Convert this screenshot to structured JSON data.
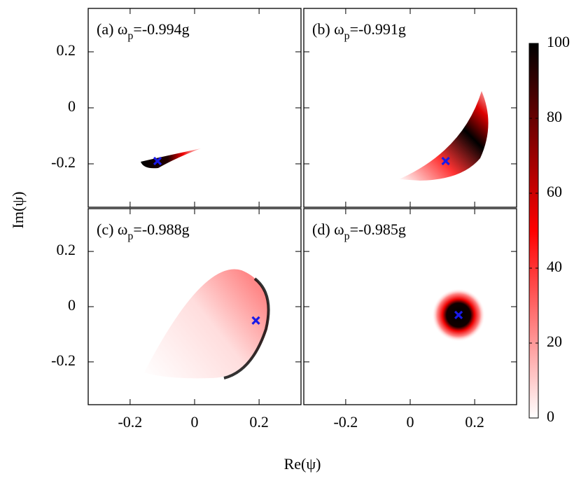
{
  "chart_data": {
    "type": "panels",
    "xlabel": "Re(ψ)",
    "ylabel": "Im(ψ)",
    "panels": [
      {
        "type": "scatter",
        "title": "(a) ω",
        "title_sub": "p",
        "title_rest": "=-0.994g",
        "x": [
          -0.115
        ],
        "y": [
          -0.19
        ],
        "color": "#1a1ae6",
        "xlim": [
          -0.33,
          0.33
        ],
        "ylim": [
          -0.355,
          0.355
        ],
        "xticks": [
          -0.2,
          0,
          0.2
        ],
        "yticks": [
          -0.2,
          0,
          0.2
        ]
      },
      {
        "type": "scatter",
        "title": "(b) ω",
        "title_sub": "p",
        "title_rest": "=-0.991g",
        "x": [
          0.11
        ],
        "y": [
          -0.19
        ],
        "color": "#1a1ae6",
        "xlim": [
          -0.33,
          0.33
        ],
        "ylim": [
          -0.355,
          0.355
        ],
        "xticks": [
          -0.2,
          0,
          0.2
        ],
        "yticks": [
          -0.2,
          0,
          0.2
        ]
      },
      {
        "type": "scatter",
        "title": "(c) ω",
        "title_sub": "p",
        "title_rest": "=-0.988g",
        "x": [
          0.19
        ],
        "y": [
          -0.05
        ],
        "color": "#1a1ae6",
        "xlim": [
          -0.33,
          0.33
        ],
        "ylim": [
          -0.355,
          0.355
        ],
        "xticks": [
          -0.2,
          0,
          0.2
        ],
        "yticks": [
          -0.2,
          0,
          0.2
        ]
      },
      {
        "type": "scatter",
        "title": "(d) ω",
        "title_sub": "p",
        "title_rest": "=-0.985g",
        "x": [
          0.15
        ],
        "y": [
          -0.03
        ],
        "color": "#1a1ae6",
        "xlim": [
          -0.33,
          0.33
        ],
        "ylim": [
          -0.355,
          0.355
        ],
        "xticks": [
          -0.2,
          0,
          0.2
        ],
        "yticks": [
          -0.2,
          0,
          0.2
        ]
      }
    ],
    "colorbar": {
      "zlim": [
        0,
        100
      ],
      "zticks": [
        0,
        20,
        40,
        60,
        80,
        100
      ],
      "colors": [
        "#ffffff",
        "#ff0000",
        "#000000"
      ]
    }
  }
}
